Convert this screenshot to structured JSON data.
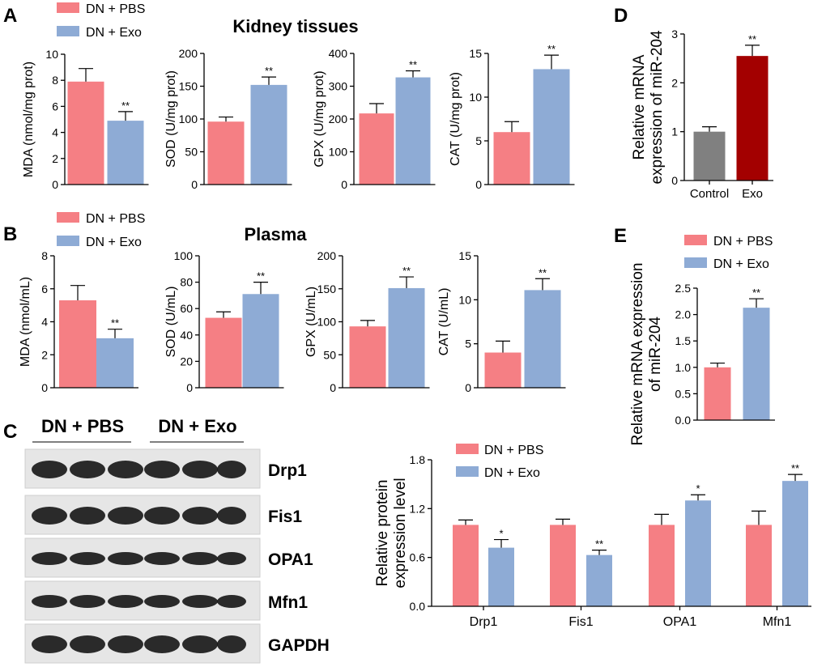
{
  "colors": {
    "pbs": "#f57f84",
    "exo": "#8eabd5",
    "control": "#808080",
    "exo_dark": "#a30000"
  },
  "panel_labels": {
    "A": "A",
    "B": "B",
    "C": "C",
    "D": "D",
    "E": "E"
  },
  "titles": {
    "kidney": "Kidney tissues",
    "plasma": "Plasma"
  },
  "legend": {
    "pbs": "DN + PBS",
    "exo": "DN + Exo"
  },
  "blot": {
    "group_pbs": "DN + PBS",
    "group_exo": "DN + Exo",
    "rows": [
      "Drp1",
      "Fis1",
      "OPA1",
      "Mfn1",
      "GAPDH"
    ]
  },
  "chart_data": [
    {
      "id": "A_MDA",
      "type": "bar",
      "panel": "A",
      "categories": [
        "DN + PBS",
        "DN + Exo"
      ],
      "values": [
        7.9,
        4.9
      ],
      "errors": [
        1.0,
        0.7
      ],
      "significance": [
        "",
        "**"
      ],
      "ylabel": "MDA (nmol/mg prot)",
      "ylim": [
        0,
        10
      ],
      "yticks": [
        0,
        2,
        4,
        6,
        8,
        10
      ]
    },
    {
      "id": "A_SOD",
      "type": "bar",
      "panel": "A",
      "categories": [
        "DN + PBS",
        "DN + Exo"
      ],
      "values": [
        96,
        152
      ],
      "errors": [
        7,
        12
      ],
      "significance": [
        "",
        "**"
      ],
      "ylabel": "SOD (U/mg prot)",
      "ylim": [
        0,
        200
      ],
      "yticks": [
        0,
        50,
        100,
        150,
        200
      ]
    },
    {
      "id": "A_GPX",
      "type": "bar",
      "panel": "A",
      "categories": [
        "DN + PBS",
        "DN + Exo"
      ],
      "values": [
        217,
        327
      ],
      "errors": [
        30,
        20
      ],
      "significance": [
        "",
        "**"
      ],
      "ylabel": "GPX (U/mg prot)",
      "ylim": [
        0,
        400
      ],
      "yticks": [
        0,
        100,
        200,
        300,
        400
      ]
    },
    {
      "id": "A_CAT",
      "type": "bar",
      "panel": "A",
      "categories": [
        "DN + PBS",
        "DN + Exo"
      ],
      "values": [
        6.0,
        13.2
      ],
      "errors": [
        1.2,
        1.6
      ],
      "significance": [
        "",
        "**"
      ],
      "ylabel": "CAT (U/mg prot)",
      "ylim": [
        0,
        15
      ],
      "yticks": [
        0,
        5,
        10,
        15
      ]
    },
    {
      "id": "B_MDA",
      "type": "bar",
      "panel": "B",
      "categories": [
        "DN + PBS",
        "DN + Exo"
      ],
      "values": [
        5.3,
        3.0
      ],
      "errors": [
        0.9,
        0.55
      ],
      "significance": [
        "",
        "**"
      ],
      "ylabel": "MDA (nmol/mL)",
      "ylim": [
        0,
        8
      ],
      "yticks": [
        0,
        2,
        4,
        6,
        8
      ]
    },
    {
      "id": "B_SOD",
      "type": "bar",
      "panel": "B",
      "categories": [
        "DN + PBS",
        "DN + Exo"
      ],
      "values": [
        53,
        71
      ],
      "errors": [
        4.5,
        9
      ],
      "significance": [
        "",
        "**"
      ],
      "ylabel": "SOD (U/mL)",
      "ylim": [
        0,
        100
      ],
      "yticks": [
        0,
        20,
        40,
        60,
        80,
        100
      ]
    },
    {
      "id": "B_GPX",
      "type": "bar",
      "panel": "B",
      "categories": [
        "DN + PBS",
        "DN + Exo"
      ],
      "values": [
        93,
        151
      ],
      "errors": [
        9,
        17
      ],
      "significance": [
        "",
        "**"
      ],
      "ylabel": "GPX (U/mL)",
      "ylim": [
        0,
        200
      ],
      "yticks": [
        0,
        50,
        100,
        150,
        200
      ]
    },
    {
      "id": "B_CAT",
      "type": "bar",
      "panel": "B",
      "categories": [
        "DN + PBS",
        "DN + Exo"
      ],
      "values": [
        4.0,
        11.1
      ],
      "errors": [
        1.3,
        1.3
      ],
      "significance": [
        "",
        "**"
      ],
      "ylabel": "CAT (U/mL)",
      "ylim": [
        0,
        15
      ],
      "yticks": [
        0,
        5,
        10,
        15
      ]
    },
    {
      "id": "C_protein",
      "type": "bar",
      "panel": "C",
      "categories": [
        "Drp1",
        "Fis1",
        "OPA1",
        "Mfn1"
      ],
      "series": [
        {
          "name": "DN + PBS",
          "values": [
            1.0,
            1.0,
            1.0,
            1.0
          ],
          "errors": [
            0.06,
            0.07,
            0.13,
            0.17
          ],
          "significance": [
            "",
            "",
            "",
            ""
          ]
        },
        {
          "name": "DN + Exo",
          "values": [
            0.72,
            0.63,
            1.3,
            1.54
          ],
          "errors": [
            0.1,
            0.06,
            0.07,
            0.08
          ],
          "significance": [
            "*",
            "**",
            "*",
            "**"
          ]
        }
      ],
      "ylabel": "Relative protein expression level",
      "ylim": [
        0,
        1.8
      ],
      "yticks": [
        "0.0",
        "0.6",
        "1.2",
        "1.8"
      ]
    },
    {
      "id": "D_mir204",
      "type": "bar",
      "panel": "D",
      "categories": [
        "Control",
        "Exo"
      ],
      "values": [
        1.0,
        2.55
      ],
      "errors": [
        0.1,
        0.22
      ],
      "significance": [
        "",
        "**"
      ],
      "ylabel": "Relative mRNA expression of miR-204",
      "ylim": [
        0,
        3
      ],
      "yticks": [
        0,
        1,
        2,
        3
      ]
    },
    {
      "id": "E_mir204",
      "type": "bar",
      "panel": "E",
      "categories": [
        "DN + PBS",
        "DN + Exo"
      ],
      "values": [
        1.0,
        2.13
      ],
      "errors": [
        0.08,
        0.17
      ],
      "significance": [
        "",
        "**"
      ],
      "ylabel": "Relative mRNA expression of miR-204",
      "ylim": [
        0,
        2.5
      ],
      "yticks": [
        "0.0",
        "0.5",
        "1.0",
        "1.5",
        "2.0",
        "2.5"
      ]
    }
  ]
}
